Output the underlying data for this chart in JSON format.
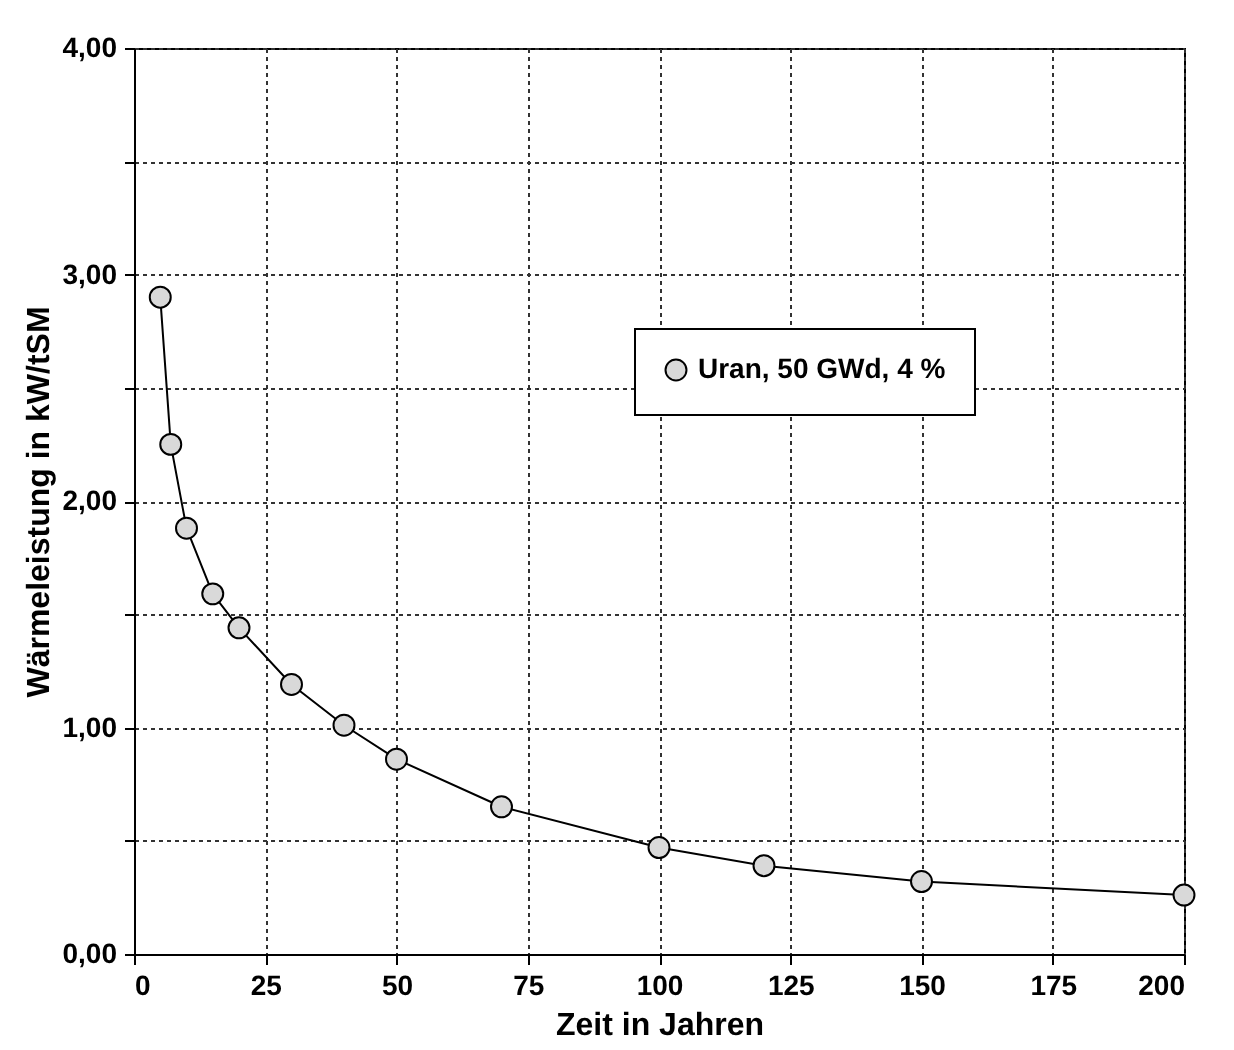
{
  "chart_data": {
    "type": "line",
    "xlabel": "Zeit in Jahren",
    "ylabel": "Wärmeleistung in kW/tSM",
    "x": [
      5,
      7,
      10,
      15,
      20,
      30,
      40,
      50,
      70,
      100,
      120,
      150,
      200
    ],
    "series": [
      {
        "name": "Uran, 50 GWd, 4 %",
        "color": "#d9d9d9",
        "values": [
          2.9,
          2.25,
          1.88,
          1.59,
          1.44,
          1.19,
          1.01,
          0.86,
          0.65,
          0.47,
          0.39,
          0.32,
          0.26
        ]
      }
    ],
    "xlim": [
      0,
      200
    ],
    "xticks": [
      0,
      25,
      50,
      75,
      100,
      125,
      150,
      175,
      200
    ],
    "ylim": [
      0,
      4
    ],
    "yticks": [
      {
        "value": 0,
        "label": "0,00"
      },
      {
        "value": 0.5,
        "label": null
      },
      {
        "value": 1,
        "label": "1,00"
      },
      {
        "value": 1.5,
        "label": null
      },
      {
        "value": 2,
        "label": "2,00"
      },
      {
        "value": 2.5,
        "label": null
      },
      {
        "value": 3,
        "label": "3,00"
      },
      {
        "value": 3.5,
        "label": null
      },
      {
        "value": 4,
        "label": "4,00"
      }
    ],
    "grid": true,
    "legend": "top right",
    "marker": "circle",
    "line_style": "solid"
  }
}
